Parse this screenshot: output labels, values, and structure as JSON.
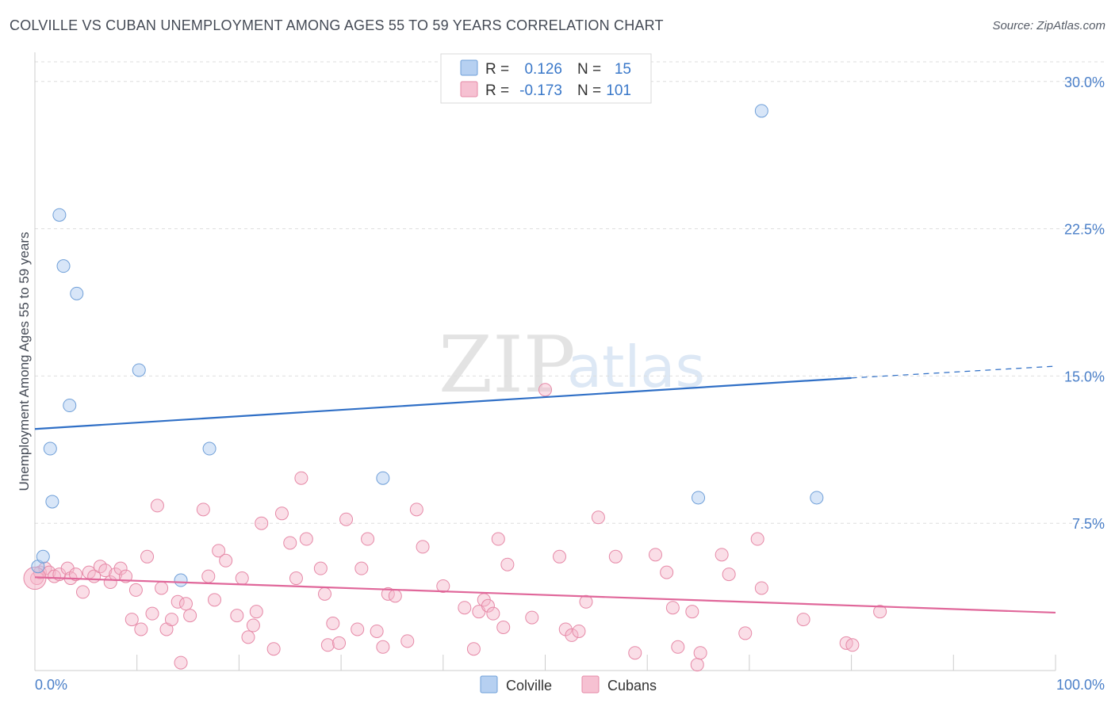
{
  "chart_data": {
    "type": "scatter",
    "title": "COLVILLE VS CUBAN UNEMPLOYMENT AMONG AGES 55 TO 59 YEARS CORRELATION CHART",
    "source": "Source: ZipAtlas.com",
    "xlabel": "",
    "ylabel": "Unemployment Among Ages 55 to 59 years",
    "xlim": [
      0,
      100
    ],
    "ylim": [
      0,
      31
    ],
    "x_tick_labels": [
      {
        "value": 0,
        "label": "0.0%"
      },
      {
        "value": 100,
        "label": "100.0%"
      }
    ],
    "y_tick_labels": [
      {
        "value": 7.5,
        "label": "7.5%"
      },
      {
        "value": 15.0,
        "label": "15.0%"
      },
      {
        "value": 22.5,
        "label": "22.5%"
      },
      {
        "value": 30.0,
        "label": "30.0%"
      }
    ],
    "watermark": {
      "part1": "ZIP",
      "part2": "atlas"
    },
    "legend": {
      "r_label": "R =",
      "n_label": "N =",
      "entries": [
        {
          "name": "Colville",
          "r": "0.126",
          "n": "15",
          "color": "#a9c8ef"
        },
        {
          "name": "Cubans",
          "r": "-0.173",
          "n": "101",
          "color": "#f5b6ca"
        }
      ]
    },
    "series": [
      {
        "name": "Colville",
        "color": "#a9c8ef",
        "stroke": "#6f9fd8",
        "trend": {
          "x0": 0,
          "y0": 12.3,
          "x1": 80,
          "y1": 14.9,
          "dash_to": 100,
          "dash_y": 15.5,
          "color": "#2f6fc6"
        },
        "points": [
          [
            0.3,
            5.3
          ],
          [
            0.8,
            5.8
          ],
          [
            1.5,
            11.3
          ],
          [
            1.7,
            8.6
          ],
          [
            2.4,
            23.2
          ],
          [
            2.8,
            20.6
          ],
          [
            3.4,
            13.5
          ],
          [
            4.1,
            19.2
          ],
          [
            10.2,
            15.3
          ],
          [
            14.3,
            4.6
          ],
          [
            17.1,
            11.3
          ],
          [
            34.1,
            9.8
          ],
          [
            65.0,
            8.8
          ],
          [
            71.2,
            28.5
          ],
          [
            76.6,
            8.8
          ]
        ]
      },
      {
        "name": "Cubans",
        "color": "#f5b6ca",
        "stroke": "#e689a7",
        "trend": {
          "x0": 0,
          "y0": 4.75,
          "x1": 100,
          "y1": 2.95,
          "color": "#e0679a"
        },
        "points": [
          [
            0.2,
            4.7
          ],
          [
            0.5,
            5.0
          ],
          [
            1.0,
            5.2
          ],
          [
            1.4,
            5.0
          ],
          [
            1.9,
            4.8
          ],
          [
            2.4,
            4.9
          ],
          [
            3.2,
            5.2
          ],
          [
            3.5,
            4.7
          ],
          [
            4.0,
            4.9
          ],
          [
            4.7,
            4.0
          ],
          [
            5.3,
            5.0
          ],
          [
            5.8,
            4.8
          ],
          [
            6.4,
            5.3
          ],
          [
            6.9,
            5.1
          ],
          [
            7.4,
            4.5
          ],
          [
            7.9,
            4.9
          ],
          [
            8.4,
            5.2
          ],
          [
            8.9,
            4.8
          ],
          [
            9.5,
            2.6
          ],
          [
            9.9,
            4.1
          ],
          [
            10.4,
            2.1
          ],
          [
            11.0,
            5.8
          ],
          [
            11.5,
            2.9
          ],
          [
            12.0,
            8.4
          ],
          [
            12.4,
            4.2
          ],
          [
            12.9,
            2.1
          ],
          [
            13.4,
            2.6
          ],
          [
            14.0,
            3.5
          ],
          [
            14.3,
            0.4
          ],
          [
            14.8,
            3.4
          ],
          [
            15.2,
            2.8
          ],
          [
            16.5,
            8.2
          ],
          [
            17.0,
            4.8
          ],
          [
            17.6,
            3.6
          ],
          [
            18.0,
            6.1
          ],
          [
            18.7,
            5.6
          ],
          [
            19.8,
            2.8
          ],
          [
            20.3,
            4.7
          ],
          [
            20.9,
            1.7
          ],
          [
            21.4,
            2.3
          ],
          [
            21.7,
            3.0
          ],
          [
            22.2,
            7.5
          ],
          [
            23.4,
            1.1
          ],
          [
            24.2,
            8.0
          ],
          [
            25.0,
            6.5
          ],
          [
            25.6,
            4.7
          ],
          [
            26.1,
            9.8
          ],
          [
            26.6,
            6.7
          ],
          [
            28.0,
            5.2
          ],
          [
            28.4,
            3.9
          ],
          [
            28.7,
            1.3
          ],
          [
            29.2,
            2.4
          ],
          [
            29.8,
            1.4
          ],
          [
            30.5,
            7.7
          ],
          [
            31.6,
            2.1
          ],
          [
            32.0,
            5.2
          ],
          [
            32.6,
            6.7
          ],
          [
            33.5,
            2.0
          ],
          [
            34.1,
            1.2
          ],
          [
            34.6,
            3.9
          ],
          [
            35.3,
            3.8
          ],
          [
            36.5,
            1.5
          ],
          [
            37.4,
            8.2
          ],
          [
            38.0,
            6.3
          ],
          [
            40.0,
            4.3
          ],
          [
            42.1,
            3.2
          ],
          [
            43.0,
            1.1
          ],
          [
            43.5,
            3.0
          ],
          [
            44.0,
            3.6
          ],
          [
            44.4,
            3.3
          ],
          [
            44.9,
            2.9
          ],
          [
            45.4,
            6.7
          ],
          [
            45.9,
            2.2
          ],
          [
            46.3,
            5.4
          ],
          [
            48.7,
            2.7
          ],
          [
            51.4,
            5.8
          ],
          [
            52.0,
            2.1
          ],
          [
            52.6,
            1.8
          ],
          [
            53.3,
            2.0
          ],
          [
            54.0,
            3.5
          ],
          [
            55.2,
            7.8
          ],
          [
            56.9,
            5.8
          ],
          [
            58.8,
            0.9
          ],
          [
            60.8,
            5.9
          ],
          [
            61.9,
            5.0
          ],
          [
            62.5,
            3.2
          ],
          [
            63.0,
            1.2
          ],
          [
            64.4,
            3.0
          ],
          [
            64.9,
            0.3
          ],
          [
            65.2,
            0.9
          ],
          [
            67.3,
            5.9
          ],
          [
            68.0,
            4.9
          ],
          [
            69.6,
            1.9
          ],
          [
            70.8,
            6.7
          ],
          [
            71.2,
            4.2
          ],
          [
            75.3,
            2.6
          ],
          [
            79.5,
            1.4
          ],
          [
            80.1,
            1.3
          ],
          [
            82.8,
            3.0
          ],
          [
            0.0,
            4.7
          ],
          [
            50.0,
            14.3
          ]
        ]
      }
    ]
  }
}
